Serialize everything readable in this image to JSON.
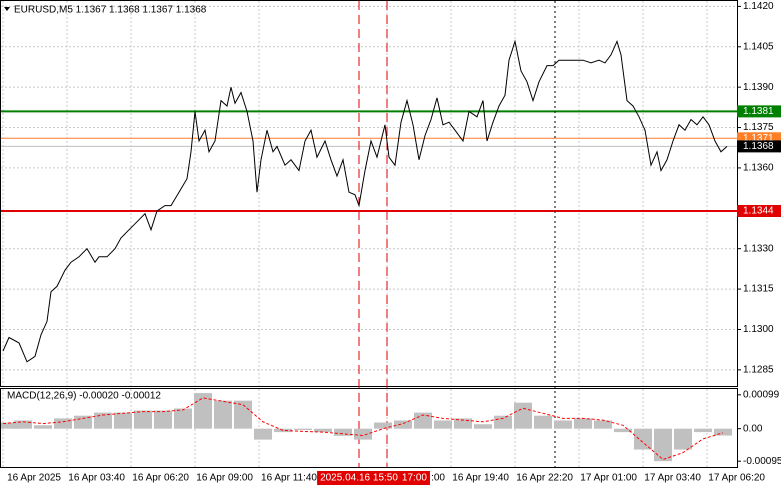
{
  "chart_data": [
    {
      "type": "line",
      "title": "EURUSD,M5  1.1367 1.1368 1.1367 1.1368",
      "color": "#000000",
      "x": [
        0,
        15,
        40,
        60,
        80,
        95,
        110,
        120,
        135,
        155,
        170,
        190,
        210,
        230,
        240,
        260,
        280,
        295,
        315,
        335,
        355,
        370,
        385,
        405,
        420,
        440,
        460,
        470,
        480,
        490,
        505,
        515,
        530,
        545,
        560,
        570,
        580,
        595,
        610,
        625,
        635,
        645,
        660,
        675,
        685,
        705,
        720,
        740,
        755,
        770,
        785,
        805,
        820,
        835,
        850,
        865,
        880,
        890,
        905,
        920,
        935,
        955,
        965,
        980,
        995,
        1010,
        1025,
        1040,
        1055,
        1070,
        1085,
        1100,
        1115,
        1130,
        1150,
        1165,
        1185,
        1200,
        1210,
        1225,
        1240,
        1255,
        1265,
        1280,
        1295,
        1310,
        1325,
        1340,
        1360,
        1375,
        1390,
        1410,
        1430,
        1450,
        1470,
        1490,
        1505,
        1520,
        1535,
        1545,
        1560,
        1575,
        1590,
        1605,
        1620,
        1635,
        1645,
        1660,
        1675,
        1690,
        1705,
        1720,
        1735,
        1750,
        1765,
        1780,
        1795,
        1810
      ],
      "values": [
        1.1292,
        1.1297,
        1.1295,
        1.1288,
        1.129,
        1.1298,
        1.1303,
        1.1314,
        1.1316,
        1.1322,
        1.1325,
        1.1327,
        1.133,
        1.1325,
        1.1327,
        1.1327,
        1.133,
        1.1334,
        1.1337,
        1.134,
        1.1343,
        1.1337,
        1.1344,
        1.1346,
        1.1346,
        1.1351,
        1.1356,
        1.1366,
        1.1381,
        1.137,
        1.1374,
        1.1366,
        1.137,
        1.1385,
        1.1383,
        1.139,
        1.1384,
        1.1388,
        1.1381,
        1.137,
        1.1351,
        1.1363,
        1.1374,
        1.1366,
        1.1368,
        1.1361,
        1.1363,
        1.1359,
        1.137,
        1.1374,
        1.1364,
        1.137,
        1.1363,
        1.1357,
        1.1363,
        1.1351,
        1.135,
        1.1346,
        1.1359,
        1.137,
        1.1364,
        1.1376,
        1.1364,
        1.1361,
        1.1377,
        1.1385,
        1.1376,
        1.1363,
        1.1372,
        1.1378,
        1.1386,
        1.1376,
        1.1377,
        1.1374,
        1.137,
        1.1381,
        1.1379,
        1.1385,
        1.137,
        1.1377,
        1.1383,
        1.1387,
        1.14,
        1.1407,
        1.1396,
        1.1392,
        1.1385,
        1.1392,
        1.1398,
        1.1398,
        1.14,
        1.14,
        1.14,
        1.14,
        1.1399,
        1.14,
        1.1399,
        1.1402,
        1.1407,
        1.1402,
        1.1385,
        1.1383,
        1.1379,
        1.1374,
        1.1361,
        1.1366,
        1.1359,
        1.1363,
        1.137,
        1.1376,
        1.1374,
        1.1378,
        1.1376,
        1.1379,
        1.1376,
        1.137,
        1.1366,
        1.1368
      ],
      "xlim": [
        0,
        1835
      ],
      "xticks": [
        {
          "value": 0,
          "label": "16 Apr 2025"
        },
        {
          "value": 160,
          "label": "16 Apr 03:40"
        },
        {
          "value": 320,
          "label": "16 Apr 06:20"
        },
        {
          "value": 480,
          "label": "16 Apr 09:00"
        },
        {
          "value": 640,
          "label": "16 Apr 11:40"
        },
        {
          "value": 960,
          "label": ":00"
        },
        {
          "value": 1120,
          "label": "16 Apr 19:40"
        },
        {
          "value": 1280,
          "label": "16 Apr 22:20"
        },
        {
          "value": 1440,
          "label": "17 Apr 01:00"
        },
        {
          "value": 1600,
          "label": "17 Apr 03:40"
        },
        {
          "value": 1760,
          "label": "17 Apr 06:20"
        }
      ],
      "ylim": [
        1.1279,
        1.1422
      ],
      "yticks": [
        {
          "value": 1.142,
          "label": "1.1420"
        },
        1.1405,
        {
          "value": 1.139,
          "label": "1.1390"
        },
        1.1375,
        {
          "value": 1.136,
          "label": "1.1360"
        },
        {
          "value": 1.133,
          "label": "1.1330"
        },
        1.1315,
        {
          "value": 1.13,
          "label": "1.1300"
        },
        1.1285
      ],
      "grid": true,
      "levels": [
        {
          "value": 1.1381,
          "color": "#008000"
        },
        {
          "value": 1.1371,
          "color": "#ff7f27"
        },
        {
          "value": 1.1368,
          "color": "#c0c0c0",
          "box": "#000000"
        },
        {
          "value": 1.1344,
          "color": "#e00000"
        }
      ],
      "markers": [
        {
          "value": 890,
          "label": "2025.04.16 15:50",
          "color": "#e00000"
        },
        {
          "value": 960,
          "label": "17:00",
          "color": "#e00000"
        },
        {
          "value": 1380,
          "color": "#000000"
        }
      ]
    },
    {
      "type": "macd",
      "title": "MACD(12,26,9) -0.00020 -0.00012",
      "color": "#c0c0c0",
      "signal_color": "#ff0000",
      "x": [
        0,
        50,
        100,
        150,
        200,
        250,
        300,
        350,
        400,
        450,
        500,
        550,
        600,
        650,
        700,
        750,
        800,
        850,
        900,
        950,
        1000,
        1050,
        1100,
        1150,
        1200,
        1250,
        1300,
        1350,
        1400,
        1450,
        1500,
        1550,
        1600,
        1650,
        1700,
        1750,
        1800
      ],
      "values": [
        0.00018,
        0.00024,
        0.0001,
        0.0003,
        0.00038,
        0.00047,
        0.00047,
        0.00053,
        0.00053,
        0.00059,
        0.00104,
        0.00082,
        0.00082,
        -0.00032,
        -0.0001,
        -4e-05,
        -0.0001,
        -0.00021,
        -0.00032,
        0.00018,
        0.00024,
        0.00047,
        0.00024,
        0.0003,
        0.00013,
        0.00038,
        0.00076,
        0.00038,
        0.00024,
        0.0003,
        0.00024,
        -0.0001,
        -0.00061,
        -0.00095,
        -0.00061,
        -0.0001,
        -0.0002
      ],
      "signal": [
        0.00015,
        0.0002,
        0.00015,
        0.0002,
        0.0003,
        0.0004,
        0.00045,
        0.0005,
        0.0005,
        0.00055,
        0.0009,
        0.0008,
        0.0007,
        0.0002,
        -5e-05,
        -8e-05,
        -0.0001,
        -0.00015,
        -0.0002,
        0,
        0.00015,
        0.0004,
        0.0003,
        0.00025,
        0.0002,
        0.0003,
        0.0006,
        0.00045,
        0.0003,
        0.0003,
        0.00025,
        0.0001,
        -0.0004,
        -0.0009,
        -0.0007,
        -0.0003,
        -0.00012
      ],
      "ylim": [
        -0.00112,
        0.00116
      ],
      "yticks": [
        0.00099,
        {
          "value": 0,
          "label": "0.00"
        },
        -0.00095
      ]
    }
  ]
}
